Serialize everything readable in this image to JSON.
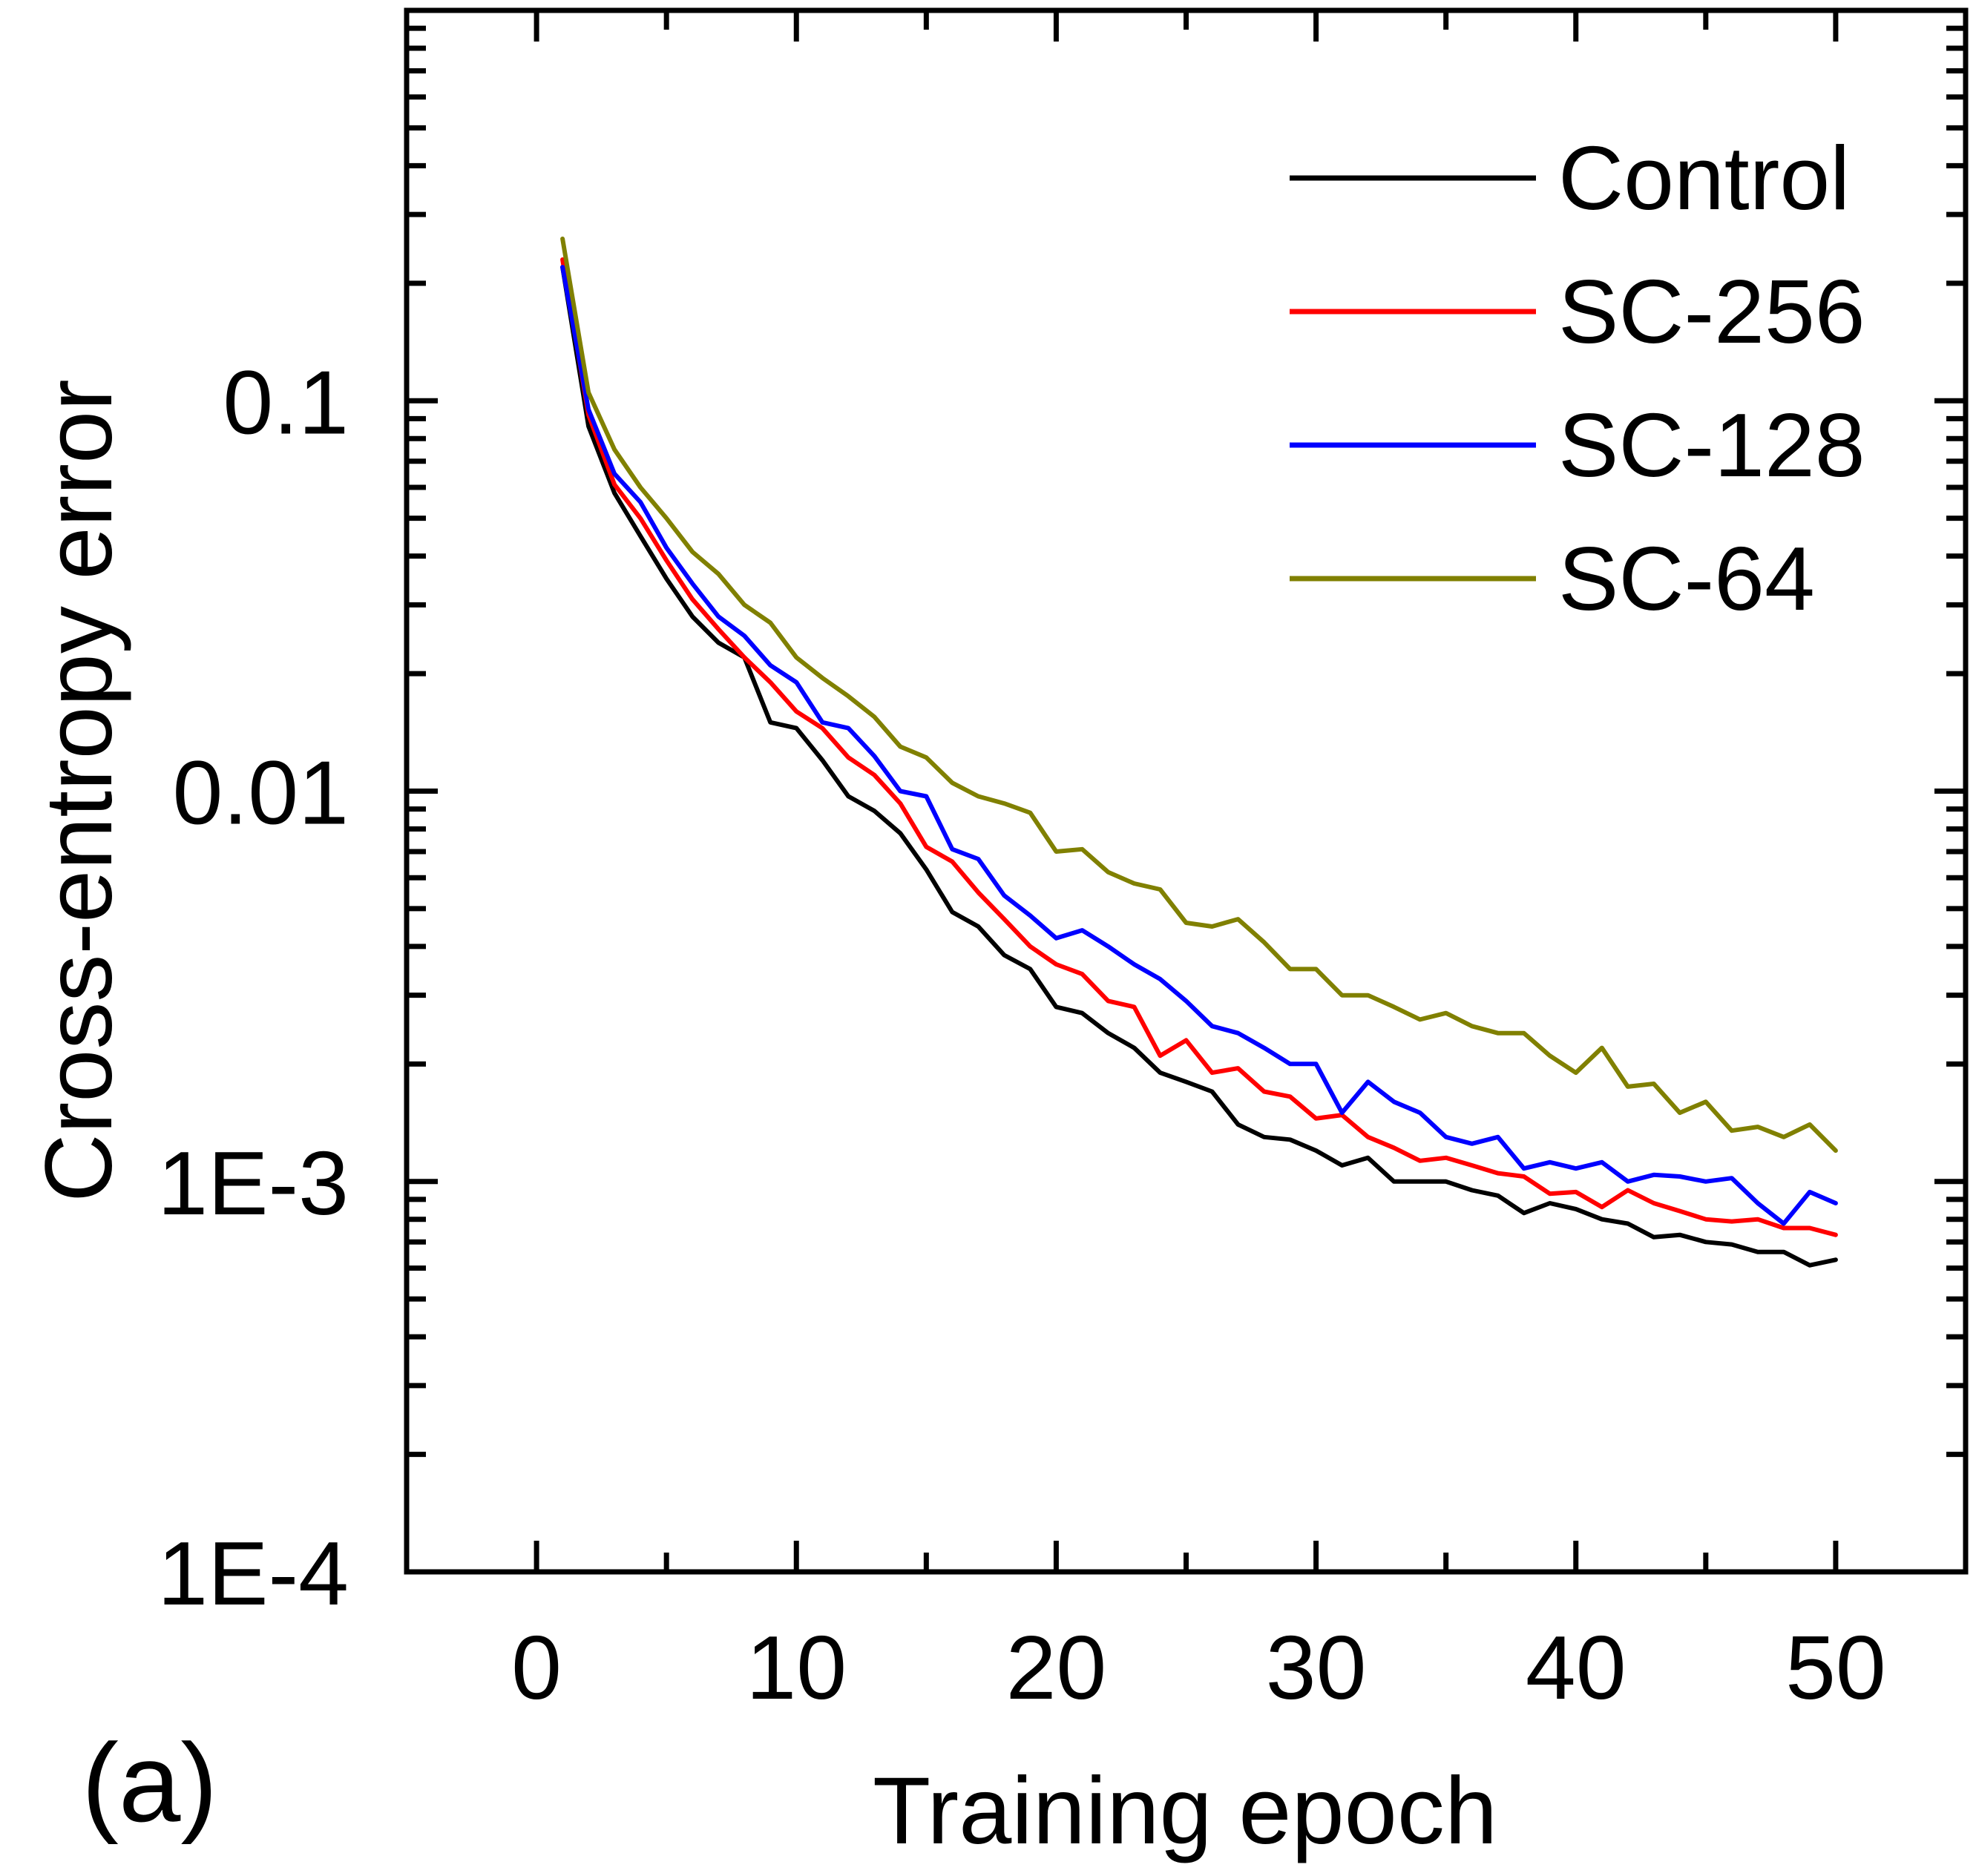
{
  "chart_data": {
    "type": "line",
    "title": "",
    "panel_label": "(a)",
    "xlabel": "Training epoch",
    "ylabel": "Cross-entropy error",
    "x_scale": "linear",
    "y_scale": "log",
    "xlim": [
      -5,
      55
    ],
    "ylim": [
      0.0001,
      1
    ],
    "x_ticks": [
      0,
      10,
      20,
      30,
      40,
      50
    ],
    "x_tick_labels": [
      "0",
      "10",
      "20",
      "30",
      "40",
      "50"
    ],
    "y_ticks": [
      0.0001,
      0.001,
      0.01,
      0.1
    ],
    "y_tick_labels": [
      "1E-4",
      "1E-3",
      "0.01",
      "0.1"
    ],
    "grid": false,
    "legend_position": "top-right",
    "x": [
      1,
      2,
      3,
      4,
      5,
      6,
      7,
      8,
      9,
      10,
      11,
      12,
      13,
      14,
      15,
      16,
      17,
      18,
      19,
      20,
      21,
      22,
      23,
      24,
      25,
      26,
      27,
      28,
      29,
      30,
      31,
      32,
      33,
      34,
      35,
      36,
      37,
      38,
      39,
      40,
      41,
      42,
      43,
      44,
      45,
      46,
      47,
      48,
      49,
      50
    ],
    "series": [
      {
        "name": "Control",
        "color": "#000000",
        "values": [
          0.22,
          0.086,
          0.058,
          0.045,
          0.035,
          0.028,
          0.024,
          0.022,
          0.015,
          0.0145,
          0.012,
          0.0097,
          0.0089,
          0.0078,
          0.0063,
          0.0049,
          0.0045,
          0.0038,
          0.0035,
          0.0028,
          0.0027,
          0.0024,
          0.0022,
          0.0019,
          0.0018,
          0.0017,
          0.0014,
          0.0013,
          0.00128,
          0.0012,
          0.0011,
          0.00115,
          0.001,
          0.001,
          0.001,
          0.00095,
          0.00092,
          0.00083,
          0.00088,
          0.00085,
          0.0008,
          0.00078,
          0.00072,
          0.00073,
          0.0007,
          0.00069,
          0.00066,
          0.00066,
          0.00061,
          0.00063
        ]
      },
      {
        "name": "SC-256",
        "color": "#ff0000",
        "values": [
          0.23,
          0.092,
          0.061,
          0.05,
          0.039,
          0.031,
          0.026,
          0.022,
          0.019,
          0.016,
          0.0145,
          0.0122,
          0.011,
          0.0093,
          0.0072,
          0.0066,
          0.0055,
          0.0047,
          0.004,
          0.0036,
          0.0034,
          0.0029,
          0.0028,
          0.0021,
          0.0023,
          0.0019,
          0.00195,
          0.0017,
          0.00165,
          0.00145,
          0.00148,
          0.0013,
          0.00122,
          0.00113,
          0.00115,
          0.0011,
          0.00105,
          0.00103,
          0.00093,
          0.00094,
          0.00086,
          0.00095,
          0.00088,
          0.00084,
          0.0008,
          0.00079,
          0.0008,
          0.00076,
          0.00076,
          0.00073
        ]
      },
      {
        "name": "SC-128",
        "color": "#0000ff",
        "values": [
          0.22,
          0.095,
          0.065,
          0.055,
          0.042,
          0.034,
          0.028,
          0.025,
          0.021,
          0.019,
          0.015,
          0.0145,
          0.0123,
          0.01,
          0.0097,
          0.0071,
          0.0067,
          0.0054,
          0.0048,
          0.0042,
          0.0044,
          0.004,
          0.0036,
          0.0033,
          0.0029,
          0.0025,
          0.0024,
          0.0022,
          0.002,
          0.002,
          0.0015,
          0.0018,
          0.0016,
          0.0015,
          0.0013,
          0.00125,
          0.0013,
          0.00108,
          0.00112,
          0.00108,
          0.00112,
          0.001,
          0.00104,
          0.00103,
          0.001,
          0.00102,
          0.00088,
          0.00078,
          0.00094,
          0.00088
        ]
      },
      {
        "name": "SC-64",
        "color": "#808000",
        "values": [
          0.26,
          0.105,
          0.075,
          0.06,
          0.05,
          0.041,
          0.036,
          0.03,
          0.027,
          0.022,
          0.0195,
          0.0175,
          0.0155,
          0.013,
          0.0122,
          0.0105,
          0.0097,
          0.0093,
          0.0088,
          0.007,
          0.0071,
          0.0062,
          0.0058,
          0.0056,
          0.0046,
          0.0045,
          0.0047,
          0.0041,
          0.0035,
          0.0035,
          0.003,
          0.003,
          0.0028,
          0.0026,
          0.0027,
          0.0025,
          0.0024,
          0.0024,
          0.0021,
          0.0019,
          0.0022,
          0.00175,
          0.00178,
          0.0015,
          0.0016,
          0.00135,
          0.00138,
          0.0013,
          0.0014,
          0.0012
        ]
      }
    ]
  }
}
